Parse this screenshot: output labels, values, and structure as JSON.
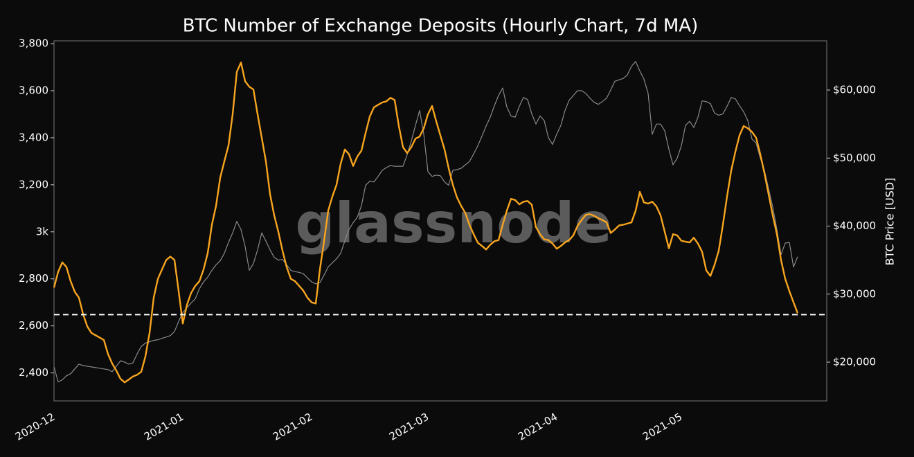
{
  "chart_data": {
    "type": "line",
    "title": "BTC Number of Exchange Deposits (Hourly Chart, 7d MA)",
    "y2_label": "BTC Price [USD]",
    "watermark": "glassnode",
    "categories": [
      "2020-12",
      null,
      null,
      null,
      null,
      null,
      null,
      null,
      null,
      null,
      null,
      null,
      null,
      null,
      null,
      null,
      null,
      null,
      null,
      null,
      null,
      null,
      null,
      null,
      null,
      null,
      null,
      null,
      null,
      null,
      null,
      "2021-01",
      null,
      null,
      null,
      null,
      null,
      null,
      null,
      null,
      null,
      null,
      null,
      null,
      null,
      null,
      null,
      null,
      null,
      null,
      null,
      null,
      null,
      null,
      null,
      null,
      null,
      null,
      null,
      null,
      null,
      null,
      "2021-02",
      null,
      null,
      null,
      null,
      null,
      null,
      null,
      null,
      null,
      null,
      null,
      null,
      null,
      null,
      null,
      null,
      null,
      null,
      null,
      null,
      null,
      null,
      null,
      null,
      null,
      null,
      null,
      "2021-03",
      null,
      null,
      null,
      null,
      null,
      null,
      null,
      null,
      null,
      null,
      null,
      null,
      null,
      null,
      null,
      null,
      null,
      null,
      null,
      null,
      null,
      null,
      null,
      null,
      null,
      null,
      null,
      null,
      null,
      null,
      "2021-04",
      null,
      null,
      null,
      null,
      null,
      null,
      null,
      null,
      null,
      null,
      null,
      null,
      null,
      null,
      null,
      null,
      null,
      null,
      null,
      null,
      null,
      null,
      null,
      null,
      null,
      null,
      null,
      null,
      null,
      "2021-05",
      null,
      null,
      null,
      null,
      null,
      null,
      null,
      null,
      null,
      null,
      null,
      null,
      null,
      null,
      null,
      null,
      null,
      null,
      null,
      null,
      null,
      null,
      null,
      null,
      null,
      null,
      null,
      null,
      null,
      null,
      null,
      null,
      null,
      null
    ],
    "series": [
      {
        "color": "#8a8a8a",
        "axis": "y2",
        "values": [
          19300,
          17100,
          17400,
          18000,
          18300,
          19000,
          19700,
          19500,
          19400,
          19300,
          19200,
          19100,
          19000,
          18900,
          18600,
          19400,
          20200,
          20000,
          19700,
          19900,
          21200,
          22300,
          22800,
          23000,
          23200,
          23300,
          23500,
          23700,
          23900,
          24500,
          26000,
          27300,
          28000,
          28700,
          29300,
          30800,
          31800,
          32500,
          33500,
          34300,
          34900,
          36000,
          37600,
          39000,
          40700,
          39500,
          37000,
          33500,
          34500,
          36500,
          39000,
          37800,
          36500,
          35400,
          35000,
          35100,
          34300,
          33500,
          33300,
          33200,
          33000,
          32400,
          31800,
          31500,
          31700,
          32800,
          34000,
          34600,
          35200,
          36000,
          37800,
          39500,
          40500,
          41300,
          43000,
          46000,
          46600,
          46500,
          47300,
          48200,
          48600,
          48900,
          48800,
          48800,
          48800,
          50500,
          52500,
          54800,
          57000,
          53500,
          48000,
          47300,
          47500,
          47400,
          46500,
          46000,
          48200,
          48300,
          48500,
          49000,
          49500,
          50600,
          51800,
          53200,
          54700,
          56000,
          57700,
          59200,
          60300,
          57500,
          56200,
          56000,
          57600,
          58900,
          58600,
          56500,
          55000,
          56200,
          55500,
          53000,
          52000,
          53500,
          54800,
          57000,
          58500,
          59200,
          59900,
          59900,
          59500,
          58800,
          58200,
          57900,
          58300,
          58800,
          60000,
          61300,
          61500,
          61700,
          62200,
          63500,
          64200,
          62800,
          61600,
          59500,
          53500,
          55000,
          55000,
          54000,
          51300,
          49000,
          50000,
          51800,
          54800,
          55400,
          54500,
          56000,
          58400,
          58300,
          58000,
          56600,
          56300,
          56500,
          57600,
          58900,
          58700,
          57700,
          56800,
          55500,
          52800,
          52200,
          50000,
          48200,
          45500,
          42800,
          39500,
          35800,
          37500,
          37600,
          34000,
          35500,
          null,
          null,
          null,
          null,
          null,
          null
        ]
      },
      {
        "color": "#f7a51f",
        "values": [
          2763,
          2830,
          2870,
          2850,
          2790,
          2745,
          2720,
          2650,
          2598,
          2570,
          2560,
          2550,
          2540,
          2480,
          2440,
          2410,
          2375,
          2360,
          2372,
          2385,
          2392,
          2405,
          2470,
          2570,
          2720,
          2800,
          2840,
          2880,
          2895,
          2880,
          2748,
          2610,
          2690,
          2740,
          2770,
          2790,
          2840,
          2910,
          3030,
          3110,
          3230,
          3300,
          3367,
          3500,
          3680,
          3720,
          3640,
          3617,
          3605,
          3500,
          3400,
          3300,
          3160,
          3070,
          3000,
          2920,
          2850,
          2800,
          2790,
          2770,
          2750,
          2720,
          2700,
          2695,
          2840,
          2960,
          3090,
          3150,
          3200,
          3290,
          3350,
          3330,
          3280,
          3320,
          3345,
          3420,
          3490,
          3529,
          3540,
          3550,
          3555,
          3570,
          3560,
          3450,
          3360,
          3335,
          3360,
          3396,
          3405,
          3440,
          3500,
          3535,
          3470,
          3410,
          3350,
          3270,
          3200,
          3146,
          3110,
          3080,
          3030,
          2990,
          2954,
          2940,
          2925,
          2945,
          2960,
          2965,
          3030,
          3090,
          3140,
          3135,
          3117,
          3128,
          3131,
          3115,
          3020,
          2990,
          2968,
          2965,
          2950,
          2928,
          2940,
          2955,
          2965,
          2985,
          3025,
          3050,
          3072,
          3075,
          3068,
          3058,
          3050,
          3040,
          2995,
          3010,
          3027,
          3030,
          3035,
          3040,
          3090,
          3170,
          3125,
          3120,
          3128,
          3108,
          3070,
          3000,
          2930,
          2990,
          2985,
          2962,
          2958,
          2955,
          2975,
          2950,
          2915,
          2836,
          2812,
          2860,
          2920,
          3030,
          3150,
          3260,
          3340,
          3410,
          3450,
          3440,
          3425,
          3400,
          3330,
          3250,
          3160,
          3070,
          2990,
          2880,
          2800,
          2748,
          2700,
          2654,
          null,
          null,
          null,
          null,
          null,
          null
        ]
      }
    ],
    "hline": 2648,
    "ylim": [
      2281,
      3812
    ],
    "yticks": [
      {
        "value": 2400,
        "label": "2,400"
      },
      {
        "value": 2600,
        "label": "2,600"
      },
      {
        "value": 2800,
        "label": "2,800"
      },
      {
        "value": 3000,
        "label": "3k"
      },
      {
        "value": 3200,
        "label": "3,200"
      },
      {
        "value": 3400,
        "label": "3,400"
      },
      {
        "value": 3600,
        "label": "3,600"
      },
      {
        "value": 3800,
        "label": "3,800"
      }
    ],
    "y2lim": [
      14300,
      67230
    ],
    "y2ticks": [
      {
        "value": 20000,
        "label": "$20,000"
      },
      {
        "value": 30000,
        "label": "$30,000"
      },
      {
        "value": 40000,
        "label": "$40,000"
      },
      {
        "value": 50000,
        "label": "$50,000"
      },
      {
        "value": 60000,
        "label": "$60,000"
      }
    ]
  }
}
